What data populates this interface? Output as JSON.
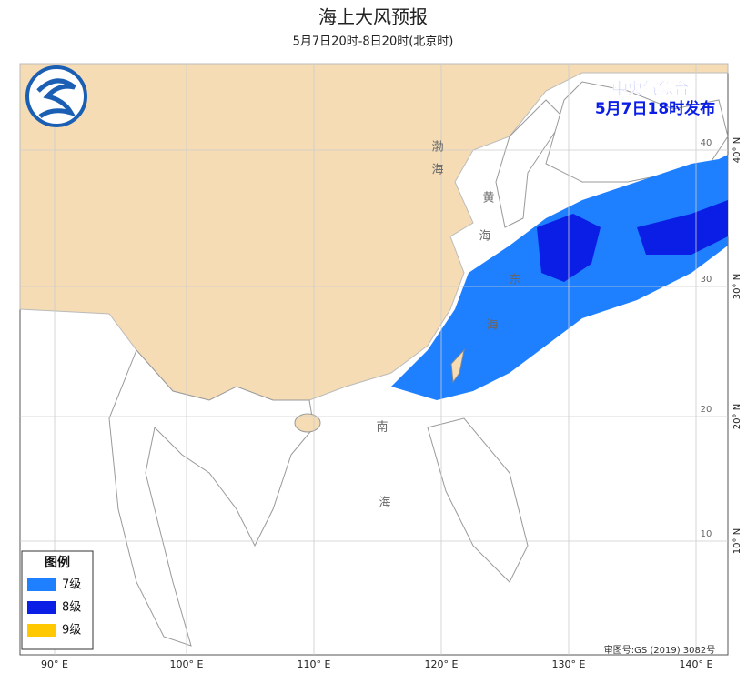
{
  "header": {
    "title": "海上大风预报",
    "subtitle": "5月7日20时-8日20时(北京时)"
  },
  "issuer": {
    "lines": [
      "中央气象台",
      "5月7日18时发布"
    ]
  },
  "legend": {
    "title": "图例",
    "items": [
      {
        "label": "7级",
        "color": "#1e7fff"
      },
      {
        "label": "8级",
        "color": "#0a1ee6"
      },
      {
        "label": "9级",
        "color": "#ffc800"
      }
    ]
  },
  "map": {
    "lon_labels": [
      "90° E",
      "100° E",
      "110° E",
      "120° E",
      "130° E",
      "140° E"
    ],
    "lat_labels": [
      "40° N",
      "30° N",
      "20° N",
      "10° N"
    ],
    "lat_inner_labels": [
      "40",
      "30",
      "20",
      "10"
    ],
    "sea_labels": [
      "渤",
      "海",
      "黄",
      "海",
      "东",
      "海",
      "南",
      "海"
    ]
  },
  "footer": {
    "review": "审图号:GS (2019) 3082号"
  }
}
